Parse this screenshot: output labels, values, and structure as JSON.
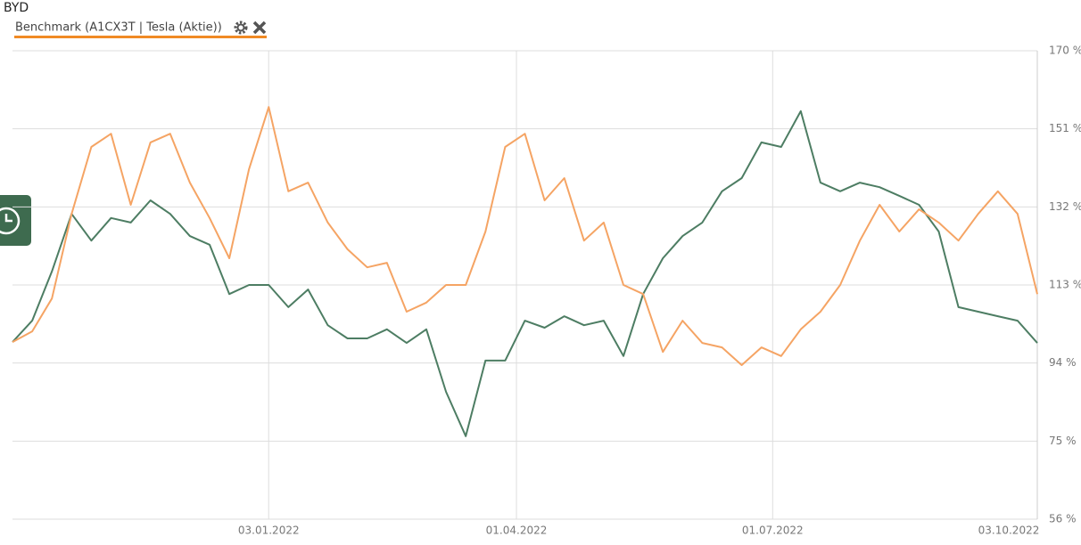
{
  "header": {
    "title": "BYD",
    "benchmark": "Benchmark (A1CX3T | Tesla (Aktie))"
  },
  "chart_data": {
    "type": "line",
    "x": [
      "2021-10-04",
      "2021-10-11",
      "2021-10-18",
      "2021-10-25",
      "2021-11-01",
      "2021-11-08",
      "2021-11-15",
      "2021-11-22",
      "2021-11-29",
      "2021-12-06",
      "2021-12-13",
      "2021-12-20",
      "2021-12-27",
      "2022-01-03",
      "2022-01-10",
      "2022-01-17",
      "2022-01-24",
      "2022-01-31",
      "2022-02-07",
      "2022-02-14",
      "2022-02-21",
      "2022-02-28",
      "2022-03-07",
      "2022-03-14",
      "2022-03-21",
      "2022-03-28",
      "2022-04-04",
      "2022-04-11",
      "2022-04-18",
      "2022-04-25",
      "2022-05-02",
      "2022-05-09",
      "2022-05-16",
      "2022-05-23",
      "2022-05-30",
      "2022-06-06",
      "2022-06-13",
      "2022-06-20",
      "2022-06-27",
      "2022-07-04",
      "2022-07-11",
      "2022-07-18",
      "2022-07-25",
      "2022-08-01",
      "2022-08-08",
      "2022-08-15",
      "2022-08-22",
      "2022-08-29",
      "2022-09-05",
      "2022-09-12",
      "2022-09-19",
      "2022-09-26",
      "2022-10-03"
    ],
    "series": [
      {
        "color": "#4d7d63",
        "values": [
          99.1,
          104.3,
          116.3,
          130.3,
          123.8,
          129.3,
          128.2,
          133.6,
          130.3,
          124.9,
          122.8,
          110.8,
          113.0,
          113.0,
          107.6,
          111.9,
          103.2,
          100.0,
          100.0,
          102.2,
          98.9,
          102.2,
          87.0,
          76.2,
          94.6,
          94.6,
          104.3,
          102.6,
          105.4,
          103.2,
          104.3,
          95.7,
          110.8,
          119.5,
          124.9,
          128.2,
          135.8,
          139.0,
          147.7,
          146.6,
          155.3,
          137.9,
          135.8,
          137.9,
          136.8,
          134.7,
          132.5,
          126.0,
          107.6,
          106.5,
          105.4,
          104.3,
          98.9
        ]
      },
      {
        "color": "#f5a464",
        "values": [
          99.1,
          101.7,
          109.7,
          130.3,
          146.6,
          149.8,
          132.5,
          147.7,
          149.8,
          137.9,
          129.3,
          119.5,
          141.2,
          156.3,
          135.8,
          137.9,
          128.2,
          121.7,
          117.3,
          118.4,
          106.5,
          108.7,
          113.0,
          113.0,
          126.0,
          146.6,
          149.8,
          133.6,
          139.0,
          123.8,
          128.2,
          113.0,
          110.8,
          96.7,
          104.3,
          98.9,
          97.8,
          93.5,
          97.8,
          95.7,
          102.2,
          106.5,
          113.0,
          123.8,
          132.5,
          126.0,
          131.4,
          128.2,
          123.8,
          130.3,
          135.8,
          130.3,
          110.8
        ]
      }
    ],
    "xlim": [
      "2021-10-04",
      "2022-10-03"
    ],
    "xticks": [
      {
        "value": "2022-01-03",
        "label": "03.01.2022"
      },
      {
        "value": "2022-04-01",
        "label": "01.04.2022"
      },
      {
        "value": "2022-07-01",
        "label": "01.07.2022"
      },
      {
        "value": "2022-10-03",
        "label": "03.10.2022"
      }
    ],
    "ylim": [
      56,
      170
    ],
    "yticks": [
      {
        "value": 56,
        "label": "56 %"
      },
      {
        "value": 75,
        "label": "75 %"
      },
      {
        "value": 94,
        "label": "94 %"
      },
      {
        "value": 113,
        "label": "113 %"
      },
      {
        "value": 132,
        "label": "132 %"
      },
      {
        "value": 151,
        "label": "151 %"
      },
      {
        "value": 170,
        "label": "170 %"
      }
    ],
    "grid": true
  }
}
